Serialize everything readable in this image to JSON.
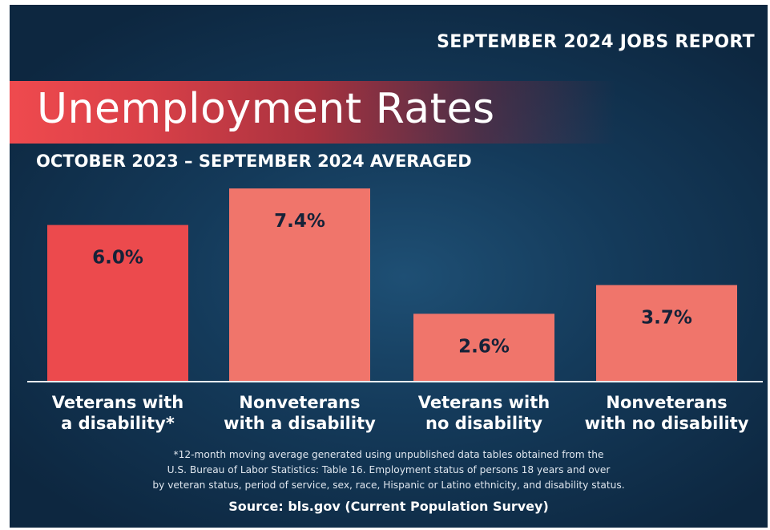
{
  "header": {
    "report_label": "SEPTEMBER 2024 JOBS REPORT",
    "title": "Unemployment Rates",
    "subtitle": "OCTOBER 2023 – SEPTEMBER 2024 AVERAGED"
  },
  "chart_data": {
    "type": "bar",
    "categories": [
      [
        "Veterans with",
        "a disability*"
      ],
      [
        "Nonveterans",
        "with a disability"
      ],
      [
        "Veterans with",
        "no disability"
      ],
      [
        "Nonveterans",
        "with no disability"
      ]
    ],
    "values": [
      6.0,
      7.4,
      2.6,
      3.7
    ],
    "value_labels": [
      "6.0%",
      "7.4%",
      "2.6%",
      "3.7%"
    ],
    "unit": "%",
    "colors": [
      "#ec4a4d",
      "#f0756b",
      "#f0756b",
      "#f0756b"
    ],
    "ylim": [
      0,
      7.4
    ],
    "grid": false,
    "legend": "none"
  },
  "footnote": {
    "lines": [
      "*12-month moving average generated using unpublished data tables obtained from the",
      "U.S. Bureau of Labor Statistics: Table 16. Employment status of persons 18 years and over",
      "by veteran status, period of service, sex, race, Hispanic or Latino ethnicity, and disability status."
    ],
    "source": "Source: bls.gov (Current Population Survey)"
  },
  "colors": {
    "background": "#143a5a",
    "title_band": "#ef4a4e",
    "value_text": "#152238",
    "text": "#ffffff"
  }
}
